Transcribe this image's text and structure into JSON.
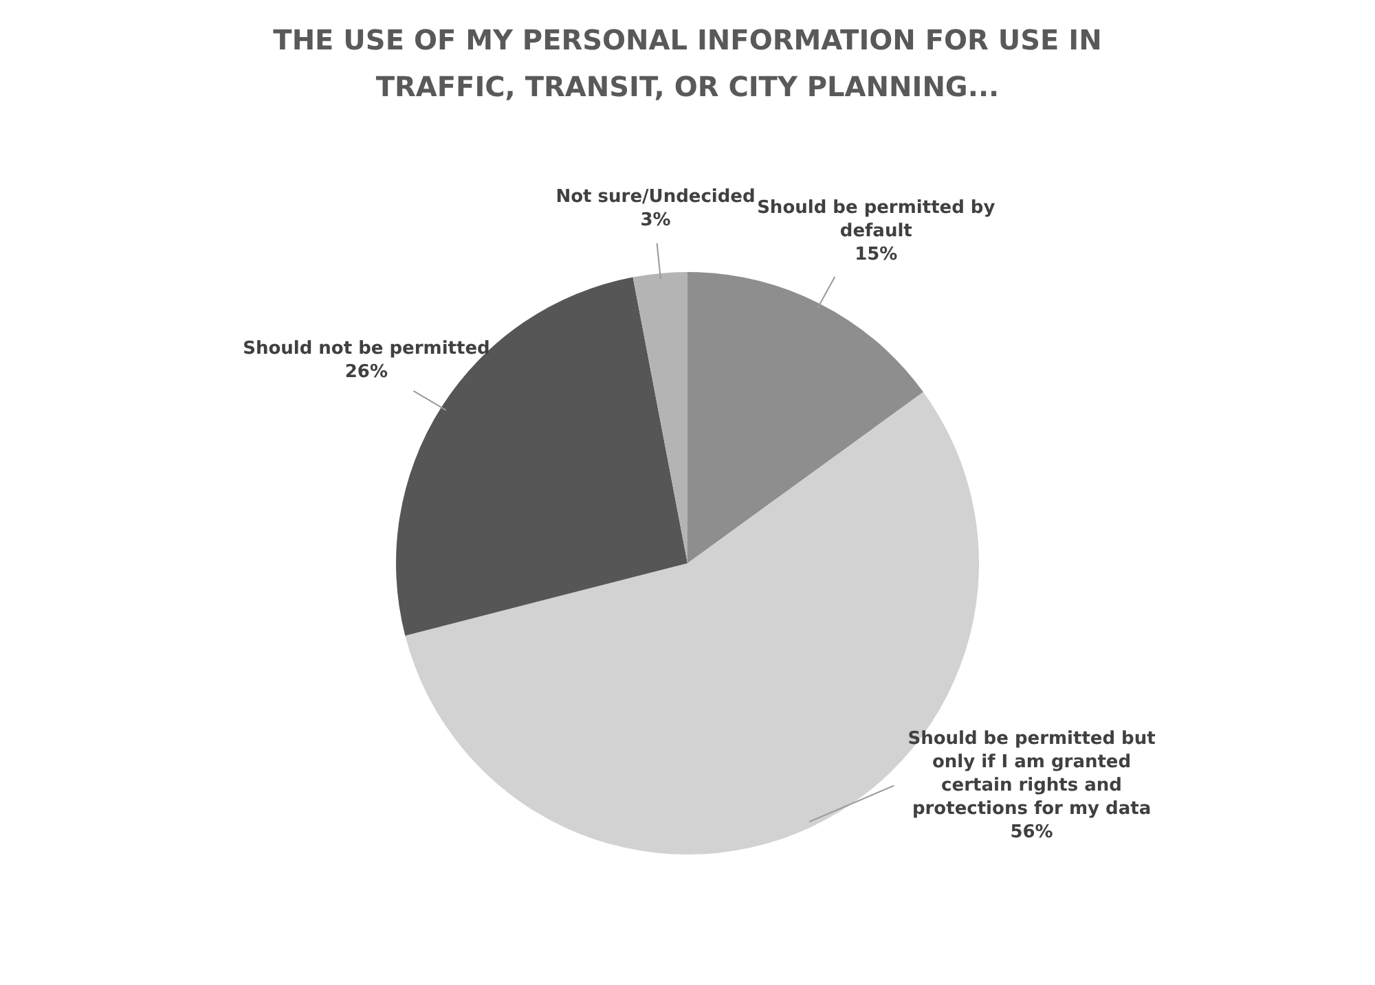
{
  "chart_data": {
    "type": "pie",
    "title": "THE USE OF MY PERSONAL INFORMATION FOR USE IN TRAFFIC, TRANSIT, OR CITY PLANNING...",
    "categories": [
      "Should be permitted by default",
      "Should be permitted but only if I am granted certain rights and protections for my data",
      "Should not be permitted",
      "Not sure/Undecided"
    ],
    "values": [
      15,
      56,
      26,
      3
    ],
    "value_labels": [
      "15%",
      "56%",
      "26%",
      "3%"
    ],
    "colors": [
      "#8e8e8e",
      "#d2d2d2",
      "#565656",
      "#b4b4b4"
    ],
    "data_labels": true,
    "legend": false
  }
}
